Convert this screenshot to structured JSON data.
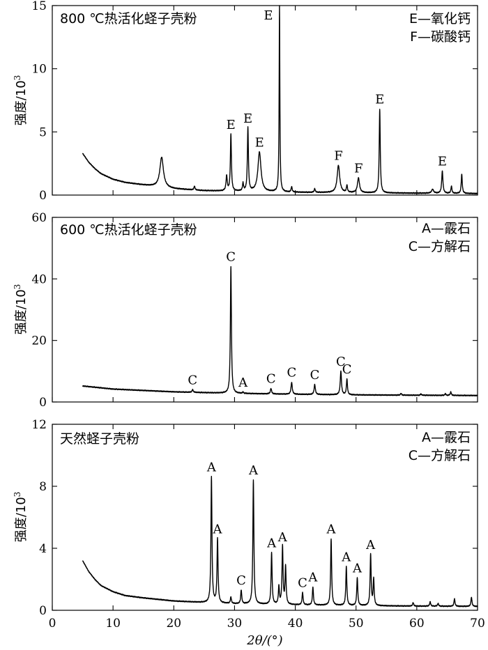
{
  "chart_data": [
    {
      "type": "line",
      "title": "800 ℃热活化蛏子壳粉",
      "ylabel": "强度/10",
      "ylabel_exponent": "3",
      "ylim": [
        0,
        15
      ],
      "yticks": [
        "0",
        "5",
        "10",
        "15"
      ],
      "xlim": [
        0,
        70
      ],
      "legend": [
        "E—氧化钙",
        "F—碳酸钙"
      ],
      "legend_position": "top-right",
      "baseline": {
        "x": [
          5,
          6,
          7,
          8,
          10,
          12,
          15,
          20,
          25,
          30,
          40,
          50,
          60,
          70
        ],
        "y": [
          3.3,
          2.6,
          2.1,
          1.7,
          1.25,
          1.0,
          0.8,
          0.5,
          0.35,
          0.3,
          0.22,
          0.18,
          0.15,
          0.12
        ]
      },
      "peaks": [
        {
          "x": 18.0,
          "y": 3.0,
          "w": 0.35,
          "label": ""
        },
        {
          "x": 23.4,
          "y": 0.7,
          "w": 0.1,
          "label": ""
        },
        {
          "x": 28.7,
          "y": 1.5,
          "w": 0.12,
          "label": ""
        },
        {
          "x": 29.4,
          "y": 4.8,
          "w": 0.1,
          "label": "E"
        },
        {
          "x": 31.4,
          "y": 0.9,
          "w": 0.1,
          "label": ""
        },
        {
          "x": 32.2,
          "y": 5.3,
          "w": 0.1,
          "label": "E"
        },
        {
          "x": 34.1,
          "y": 3.4,
          "w": 0.3,
          "label": "E"
        },
        {
          "x": 37.4,
          "y": 15.0,
          "w": 0.07,
          "label": "E"
        },
        {
          "x": 39.4,
          "y": 0.65,
          "w": 0.1,
          "label": ""
        },
        {
          "x": 43.2,
          "y": 0.5,
          "w": 0.1,
          "label": ""
        },
        {
          "x": 47.1,
          "y": 2.35,
          "w": 0.25,
          "label": "F"
        },
        {
          "x": 48.5,
          "y": 0.75,
          "w": 0.1,
          "label": ""
        },
        {
          "x": 50.4,
          "y": 1.35,
          "w": 0.2,
          "label": "F"
        },
        {
          "x": 53.9,
          "y": 6.8,
          "w": 0.1,
          "label": "E"
        },
        {
          "x": 62.6,
          "y": 0.45,
          "w": 0.2,
          "label": ""
        },
        {
          "x": 64.2,
          "y": 1.9,
          "w": 0.12,
          "label": "E"
        },
        {
          "x": 65.7,
          "y": 0.7,
          "w": 0.1,
          "label": ""
        },
        {
          "x": 67.4,
          "y": 1.65,
          "w": 0.1,
          "label": ""
        }
      ]
    },
    {
      "type": "line",
      "title": "600 ℃热活化蛏子壳粉",
      "ylabel": "强度/10",
      "ylabel_exponent": "3",
      "ylim": [
        0,
        60
      ],
      "yticks": [
        "0",
        "20",
        "40",
        "60"
      ],
      "xlim": [
        0,
        70
      ],
      "legend": [
        "A—霰石",
        "C—方解石"
      ],
      "legend_position": "top-right",
      "baseline": {
        "x": [
          5,
          10,
          20,
          30,
          40,
          50,
          60,
          70
        ],
        "y": [
          5.2,
          4.2,
          3.3,
          2.8,
          2.5,
          2.3,
          2.2,
          2.1
        ]
      },
      "peaks": [
        {
          "x": 23.1,
          "y": 4.0,
          "w": 0.12,
          "label": "C"
        },
        {
          "x": 29.4,
          "y": 44.0,
          "w": 0.1,
          "label": "C"
        },
        {
          "x": 31.4,
          "y": 3.2,
          "w": 0.1,
          "label": "A"
        },
        {
          "x": 36.0,
          "y": 4.4,
          "w": 0.12,
          "label": "C"
        },
        {
          "x": 39.4,
          "y": 6.4,
          "w": 0.12,
          "label": "C"
        },
        {
          "x": 43.2,
          "y": 5.7,
          "w": 0.12,
          "label": "C"
        },
        {
          "x": 47.5,
          "y": 10.0,
          "w": 0.12,
          "label": "C"
        },
        {
          "x": 48.5,
          "y": 7.5,
          "w": 0.1,
          "label": "C"
        },
        {
          "x": 57.4,
          "y": 2.8,
          "w": 0.1,
          "label": ""
        },
        {
          "x": 60.7,
          "y": 2.6,
          "w": 0.1,
          "label": ""
        },
        {
          "x": 64.7,
          "y": 2.7,
          "w": 0.1,
          "label": ""
        },
        {
          "x": 65.6,
          "y": 3.3,
          "w": 0.1,
          "label": ""
        }
      ]
    },
    {
      "type": "line",
      "title": "天然蛏子壳粉",
      "ylabel": "强度/10",
      "ylabel_exponent": "3",
      "ylim": [
        0,
        12
      ],
      "yticks": [
        "0",
        "4",
        "8",
        "12"
      ],
      "xlim": [
        0,
        70
      ],
      "xticks": [
        "0",
        "10",
        "20",
        "30",
        "40",
        "50",
        "60",
        "70"
      ],
      "xlabel": "2θ/(°)",
      "legend": [
        "A—霰石",
        "C—方解石"
      ],
      "legend_position": "top-right",
      "baseline": {
        "x": [
          5,
          6,
          7,
          8,
          10,
          12,
          15,
          20,
          25,
          30,
          40,
          50,
          60,
          70
        ],
        "y": [
          3.2,
          2.5,
          2.0,
          1.6,
          1.2,
          0.95,
          0.8,
          0.6,
          0.5,
          0.42,
          0.35,
          0.3,
          0.27,
          0.25
        ]
      },
      "peaks": [
        {
          "x": 26.2,
          "y": 8.6,
          "w": 0.1,
          "label": "A"
        },
        {
          "x": 27.2,
          "y": 4.6,
          "w": 0.1,
          "label": "A"
        },
        {
          "x": 29.4,
          "y": 0.85,
          "w": 0.1,
          "label": ""
        },
        {
          "x": 31.1,
          "y": 1.3,
          "w": 0.1,
          "label": "C"
        },
        {
          "x": 33.1,
          "y": 8.4,
          "w": 0.1,
          "label": "A"
        },
        {
          "x": 36.1,
          "y": 3.7,
          "w": 0.1,
          "label": "A"
        },
        {
          "x": 37.3,
          "y": 1.5,
          "w": 0.1,
          "label": ""
        },
        {
          "x": 37.9,
          "y": 4.1,
          "w": 0.1,
          "label": "A"
        },
        {
          "x": 38.4,
          "y": 2.8,
          "w": 0.1,
          "label": ""
        },
        {
          "x": 41.2,
          "y": 1.15,
          "w": 0.1,
          "label": "C"
        },
        {
          "x": 42.9,
          "y": 1.5,
          "w": 0.1,
          "label": "A"
        },
        {
          "x": 45.9,
          "y": 4.6,
          "w": 0.1,
          "label": "A"
        },
        {
          "x": 48.4,
          "y": 2.8,
          "w": 0.1,
          "label": "A"
        },
        {
          "x": 50.2,
          "y": 2.1,
          "w": 0.1,
          "label": "A"
        },
        {
          "x": 52.4,
          "y": 3.6,
          "w": 0.1,
          "label": "A"
        },
        {
          "x": 52.9,
          "y": 2.0,
          "w": 0.1,
          "label": ""
        },
        {
          "x": 59.4,
          "y": 0.5,
          "w": 0.1,
          "label": ""
        },
        {
          "x": 62.2,
          "y": 0.55,
          "w": 0.1,
          "label": ""
        },
        {
          "x": 63.5,
          "y": 0.45,
          "w": 0.1,
          "label": ""
        },
        {
          "x": 66.2,
          "y": 0.75,
          "w": 0.1,
          "label": ""
        },
        {
          "x": 69.0,
          "y": 0.85,
          "w": 0.1,
          "label": ""
        }
      ]
    }
  ]
}
